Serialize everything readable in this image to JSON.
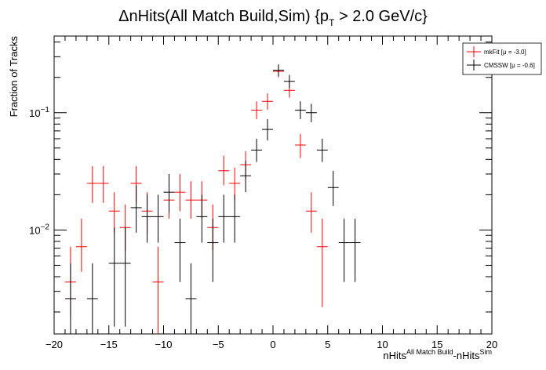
{
  "chart_data": {
    "type": "scatter",
    "title": {
      "prefix": "ΔnHits(All Match Build,Sim) {p",
      "subscript": "T",
      "suffix": " > 2.0 GeV/c}"
    },
    "xlabel": {
      "base1": "nHits",
      "sup1": "All Match Build",
      "mid": "-nHits",
      "sup2": "Sim"
    },
    "ylabel": "Fraction of Tracks",
    "y_scale": "log",
    "xlim": [
      -20,
      20
    ],
    "ylim": [
      0.0013,
      0.45
    ],
    "x_ticks": [
      -20,
      -15,
      -10,
      -5,
      0,
      5,
      10,
      15,
      20
    ],
    "x_tick_labels": [
      "−20",
      "−15",
      "−10",
      "−5",
      "0",
      "5",
      "10",
      "15",
      "20"
    ],
    "y_ticks": [
      0.01,
      0.1
    ],
    "y_tick_labels": [
      {
        "base": "10",
        "exp": "−2"
      },
      {
        "base": "10",
        "exp": "−1"
      }
    ],
    "grid": false,
    "legend_position": "top-right",
    "series": [
      {
        "name": "mkFit  [μ = -3.0]",
        "color": "#ff0000",
        "points": [
          {
            "x": -18.5,
            "y": 0.0036,
            "ylo": 0.0018,
            "yhi": 0.0072
          },
          {
            "x": -17.5,
            "y": 0.0072,
            "ylo": 0.0044,
            "yhi": 0.0125
          },
          {
            "x": -16.5,
            "y": 0.025,
            "ylo": 0.017,
            "yhi": 0.035
          },
          {
            "x": -15.5,
            "y": 0.025,
            "ylo": 0.017,
            "yhi": 0.035
          },
          {
            "x": -14.5,
            "y": 0.0145,
            "ylo": 0.0095,
            "yhi": 0.021
          },
          {
            "x": -13.5,
            "y": 0.0105,
            "ylo": 0.0067,
            "yhi": 0.0165
          },
          {
            "x": -12.5,
            "y": 0.025,
            "ylo": 0.017,
            "yhi": 0.035
          },
          {
            "x": -11.5,
            "y": 0.0145,
            "ylo": 0.0095,
            "yhi": 0.021
          },
          {
            "x": -10.5,
            "y": 0.0036,
            "ylo": 0.0013,
            "yhi": 0.0072
          },
          {
            "x": -9.5,
            "y": 0.018,
            "ylo": 0.0125,
            "yhi": 0.026
          },
          {
            "x": -8.5,
            "y": 0.021,
            "ylo": 0.0145,
            "yhi": 0.03
          },
          {
            "x": -7.5,
            "y": 0.018,
            "ylo": 0.0125,
            "yhi": 0.026
          },
          {
            "x": -6.5,
            "y": 0.018,
            "ylo": 0.0125,
            "yhi": 0.026
          },
          {
            "x": -5.5,
            "y": 0.0105,
            "ylo": 0.0067,
            "yhi": 0.0165
          },
          {
            "x": -4.5,
            "y": 0.032,
            "ylo": 0.024,
            "yhi": 0.043
          },
          {
            "x": -3.5,
            "y": 0.025,
            "ylo": 0.018,
            "yhi": 0.034
          },
          {
            "x": -2.5,
            "y": 0.036,
            "ylo": 0.027,
            "yhi": 0.047
          },
          {
            "x": -1.5,
            "y": 0.105,
            "ylo": 0.088,
            "yhi": 0.125
          },
          {
            "x": -0.5,
            "y": 0.125,
            "ylo": 0.106,
            "yhi": 0.146
          },
          {
            "x": 0.5,
            "y": 0.225,
            "ylo": 0.2,
            "yhi": 0.252
          },
          {
            "x": 1.5,
            "y": 0.155,
            "ylo": 0.134,
            "yhi": 0.178
          },
          {
            "x": 2.5,
            "y": 0.053,
            "ylo": 0.041,
            "yhi": 0.066
          },
          {
            "x": 3.5,
            "y": 0.0145,
            "ylo": 0.0095,
            "yhi": 0.021
          },
          {
            "x": 4.5,
            "y": 0.0072,
            "ylo": 0.0022,
            "yhi": 0.0125
          }
        ]
      },
      {
        "name": "CMSSW  [μ = -0.6]",
        "color": "#000000",
        "points": [
          {
            "x": -18.5,
            "y": 0.0026,
            "ylo": 0.0013,
            "yhi": 0.0052
          },
          {
            "x": -16.5,
            "y": 0.0026,
            "ylo": 0.0013,
            "yhi": 0.0052
          },
          {
            "x": -14.5,
            "y": 0.0052,
            "ylo": 0.0015,
            "yhi": 0.0105
          },
          {
            "x": -13.5,
            "y": 0.0052,
            "ylo": 0.0015,
            "yhi": 0.0105
          },
          {
            "x": -12.5,
            "y": 0.0155,
            "ylo": 0.0095,
            "yhi": 0.024
          },
          {
            "x": -11.5,
            "y": 0.013,
            "ylo": 0.0078,
            "yhi": 0.02
          },
          {
            "x": -10.5,
            "y": 0.013,
            "ylo": 0.0078,
            "yhi": 0.02
          },
          {
            "x": -9.5,
            "y": 0.021,
            "ylo": 0.014,
            "yhi": 0.03
          },
          {
            "x": -8.5,
            "y": 0.0078,
            "ylo": 0.0036,
            "yhi": 0.0125
          },
          {
            "x": -7.5,
            "y": 0.0026,
            "ylo": 0.0013,
            "yhi": 0.0052
          },
          {
            "x": -6.5,
            "y": 0.013,
            "ylo": 0.0078,
            "yhi": 0.02
          },
          {
            "x": -5.5,
            "y": 0.0078,
            "ylo": 0.0036,
            "yhi": 0.0125
          },
          {
            "x": -4.5,
            "y": 0.013,
            "ylo": 0.0078,
            "yhi": 0.02
          },
          {
            "x": -3.5,
            "y": 0.013,
            "ylo": 0.0078,
            "yhi": 0.02
          },
          {
            "x": -2.5,
            "y": 0.029,
            "ylo": 0.021,
            "yhi": 0.039
          },
          {
            "x": -1.5,
            "y": 0.048,
            "ylo": 0.038,
            "yhi": 0.06
          },
          {
            "x": -0.5,
            "y": 0.072,
            "ylo": 0.058,
            "yhi": 0.088
          },
          {
            "x": 0.5,
            "y": 0.23,
            "ylo": 0.205,
            "yhi": 0.258
          },
          {
            "x": 1.5,
            "y": 0.185,
            "ylo": 0.162,
            "yhi": 0.21
          },
          {
            "x": 2.5,
            "y": 0.105,
            "ylo": 0.088,
            "yhi": 0.125
          },
          {
            "x": 3.5,
            "y": 0.1,
            "ylo": 0.083,
            "yhi": 0.119
          },
          {
            "x": 4.5,
            "y": 0.048,
            "ylo": 0.038,
            "yhi": 0.06
          },
          {
            "x": 5.5,
            "y": 0.023,
            "ylo": 0.016,
            "yhi": 0.032
          },
          {
            "x": 6.5,
            "y": 0.0078,
            "ylo": 0.0036,
            "yhi": 0.0125
          },
          {
            "x": 7.5,
            "y": 0.0078,
            "ylo": 0.0036,
            "yhi": 0.0125
          }
        ]
      }
    ]
  }
}
